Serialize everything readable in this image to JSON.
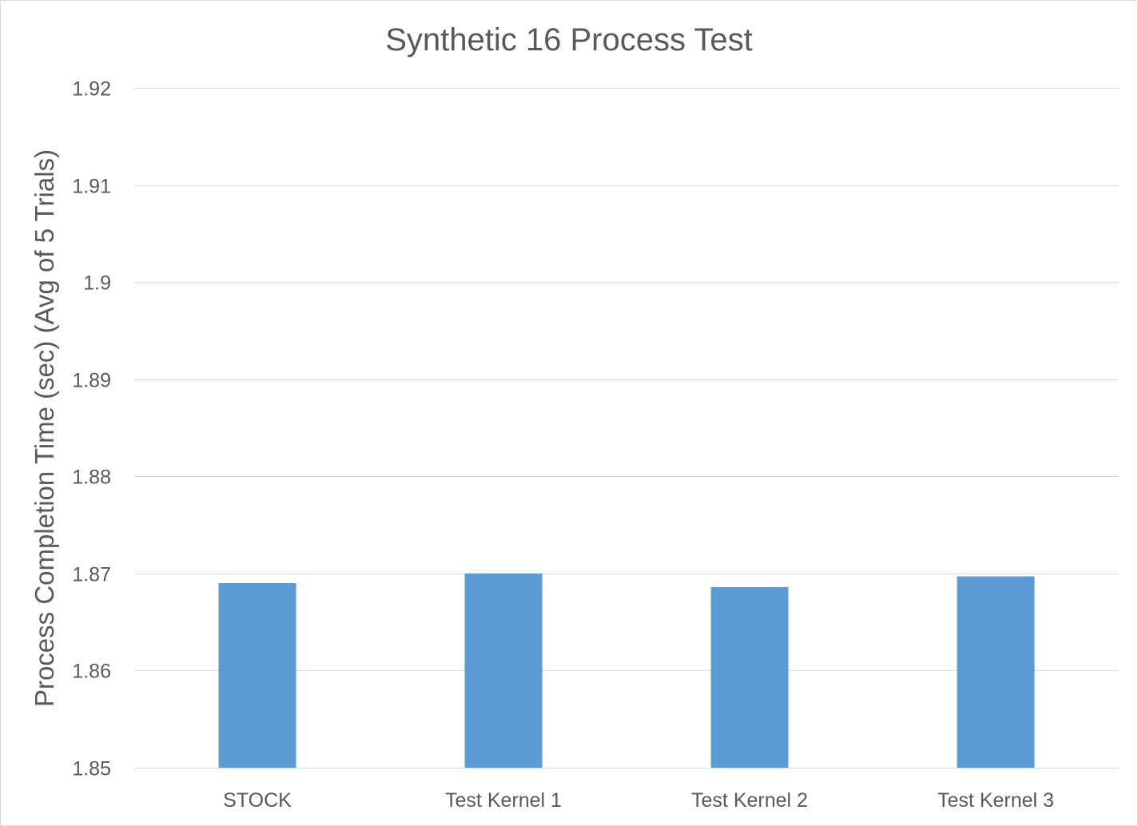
{
  "chart_data": {
    "type": "bar",
    "title": "Synthetic 16 Process Test",
    "xlabel": "",
    "ylabel": "Process Completion Time (sec)    (Avg of 5 Trials)",
    "categories": [
      "STOCK",
      "Test Kernel 1",
      "Test Kernel 2",
      "Test Kernel 3"
    ],
    "values": [
      1.869,
      1.87,
      1.8686,
      1.8697
    ],
    "ylim": [
      1.85,
      1.92
    ],
    "yticks": [
      1.85,
      1.86,
      1.87,
      1.88,
      1.89,
      1.9,
      1.91,
      1.92
    ],
    "ytick_labels": [
      "1.85",
      "1.86",
      "1.87",
      "1.88",
      "1.89",
      "1.9",
      "1.91",
      "1.92"
    ],
    "grid": true,
    "legend": "none",
    "bar_color": "#5b9bd5"
  }
}
